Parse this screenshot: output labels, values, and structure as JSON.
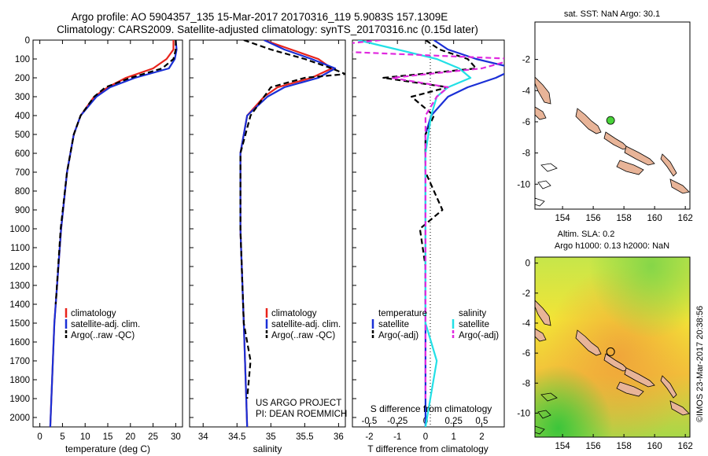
{
  "header": {
    "title_line1": "Argo profile: AO 5904357_135 15-Mar-2017 20170316_119 5.9083S 157.1309E",
    "title_line2": "Climatology: CARS2009. Satellite-adjusted climatology: synTS_20170316.nc (0.15d later)"
  },
  "colors": {
    "climatology": "#e8231b",
    "satellite": "#1a2fd6",
    "argo": "#000000",
    "satellite_salinity": "#22e0e6",
    "argo_salinity": "#e02adf",
    "land": "#e8b498",
    "float_marker": "#49d33a"
  },
  "chart_data": [
    {
      "name": "temperature-profile",
      "type": "line",
      "xlabel": "temperature (deg C)",
      "ylabel": "",
      "xlim": [
        -1.5,
        31.5
      ],
      "ylim": [
        2050,
        0
      ],
      "xticks": [
        0,
        5,
        10,
        15,
        20,
        25,
        30
      ],
      "yticks": [
        0,
        100,
        200,
        300,
        400,
        500,
        600,
        700,
        800,
        900,
        1000,
        1100,
        1200,
        1300,
        1400,
        1500,
        1600,
        1700,
        1800,
        1900,
        2000
      ],
      "legend": [
        "climatology",
        "satellite-adj. clim.",
        "Argo(..raw -QC)"
      ],
      "legend_position": "lower-right",
      "series": [
        {
          "name": "climatology",
          "depth": [
            0,
            50,
            100,
            150,
            200,
            250,
            300,
            400,
            500,
            700,
            1000,
            1500,
            2050
          ],
          "values": [
            29.5,
            29.5,
            28.0,
            25.0,
            19.0,
            15.0,
            12.0,
            9.0,
            7.5,
            6.0,
            4.7,
            3.2,
            2.3
          ]
        },
        {
          "name": "satellite-adj. clim.",
          "depth": [
            0,
            50,
            100,
            150,
            200,
            250,
            300,
            400,
            500,
            700,
            1000,
            1500,
            2050
          ],
          "values": [
            30.0,
            30.2,
            29.8,
            28.5,
            21.0,
            15.5,
            12.5,
            9.0,
            7.5,
            6.0,
            4.7,
            3.2,
            2.3
          ]
        },
        {
          "name": "Argo(..raw -QC)",
          "depth": [
            0,
            50,
            100,
            150,
            200,
            250,
            300,
            400,
            500,
            700,
            1000,
            1400
          ],
          "values": [
            30.0,
            30.0,
            29.5,
            27.0,
            20.0,
            14.5,
            12.0,
            9.0,
            7.5,
            6.0,
            4.6,
            3.5
          ]
        }
      ]
    },
    {
      "name": "salinity-profile",
      "type": "line",
      "xlabel": "salinity",
      "ylabel": "",
      "xlim": [
        33.8,
        36.1
      ],
      "ylim": [
        2050,
        0
      ],
      "xticks": [
        34,
        34.5,
        35,
        35.5,
        36
      ],
      "legend": [
        "climatology",
        "satellite-adj. clim.",
        "Argo(..raw -QC)"
      ],
      "legend_position": "lower-right",
      "annotation": [
        "US ARGO PROJECT",
        "PI: DEAN ROEMMICH"
      ],
      "series": [
        {
          "name": "climatology",
          "depth": [
            0,
            50,
            100,
            150,
            200,
            250,
            300,
            400,
            600,
            1000,
            1500,
            2050
          ],
          "values": [
            34.9,
            35.3,
            35.7,
            35.9,
            35.6,
            35.1,
            34.9,
            34.65,
            34.55,
            34.55,
            34.6,
            34.65
          ]
        },
        {
          "name": "satellite-adj. clim.",
          "depth": [
            0,
            50,
            100,
            150,
            200,
            250,
            300,
            400,
            600,
            1000,
            1500,
            2050
          ],
          "values": [
            34.9,
            35.2,
            35.6,
            35.95,
            35.7,
            35.2,
            34.95,
            34.65,
            34.55,
            34.55,
            34.6,
            34.65
          ]
        },
        {
          "name": "Argo(..raw -QC)",
          "depth": [
            0,
            50,
            100,
            150,
            180,
            200,
            250,
            300,
            400,
            600,
            1000,
            1500,
            1700,
            1900
          ],
          "values": [
            34.6,
            35.0,
            35.5,
            35.9,
            36.1,
            35.5,
            35.0,
            34.9,
            34.7,
            34.55,
            34.55,
            34.6,
            34.7,
            34.65
          ]
        }
      ]
    },
    {
      "name": "difference-profile",
      "type": "line",
      "xlabel": "T difference from climatology",
      "xlabel_top": "S difference from climatology",
      "xlim": [
        -2.6,
        2.8
      ],
      "ylim": [
        2050,
        0
      ],
      "xticks": [
        -2,
        -1,
        0,
        1,
        2
      ],
      "xticks_salinity": [
        "-0.5",
        "-0.25",
        "0",
        "0.25",
        "0.5"
      ],
      "legend_temperature_heading": "temperature",
      "legend_salinity_heading": "salinity",
      "legend": [
        "satellite",
        "Argo(-adj)",
        "satellite",
        "Argo(-adj)"
      ],
      "series": [
        {
          "name": "temperature satellite",
          "depth": [
            0,
            50,
            100,
            150,
            200,
            250,
            300,
            400,
            500,
            700,
            1000,
            1500,
            2050
          ],
          "values": [
            0.3,
            0.8,
            1.8,
            3.2,
            2.5,
            1.5,
            0.8,
            0.2,
            0.0,
            0.0,
            0.0,
            0.0,
            0.0
          ]
        },
        {
          "name": "temperature Argo(-adj)",
          "depth": [
            0,
            50,
            100,
            150,
            200,
            250,
            300,
            400,
            500,
            700,
            900,
            1000,
            1200,
            1400
          ],
          "values": [
            0.0,
            0.5,
            1.5,
            1.8,
            -1.5,
            0.8,
            -0.5,
            0.3,
            0.0,
            0.0,
            0.6,
            -0.2,
            0.0,
            0.0
          ]
        },
        {
          "name": "salinity satellite",
          "depth": [
            0,
            50,
            100,
            150,
            200,
            250,
            300,
            400,
            600,
            1000,
            1500,
            1700,
            2050
          ],
          "values": [
            -0.6,
            -0.25,
            0.1,
            0.3,
            0.4,
            0.2,
            0.1,
            0.05,
            0.0,
            0.0,
            0.0,
            0.1,
            0.0
          ]
        },
        {
          "name": "salinity Argo(-adj)",
          "depth": [
            0,
            50,
            100,
            150,
            200,
            250,
            300,
            400,
            600,
            1000,
            1500,
            1900
          ],
          "values": [
            -0.4,
            -1.2,
            0.8,
            0.5,
            -0.3,
            0.2,
            0.1,
            0.0,
            0.0,
            0.0,
            0.0,
            0.0
          ]
        }
      ]
    },
    {
      "name": "sst-map",
      "type": "heatmap",
      "title": "sat. SST: NaN Argo: 30.1",
      "xlim": [
        152.2,
        162.3
      ],
      "ylim": [
        -11.6,
        0.4
      ],
      "xticks": [
        154,
        156,
        158,
        160,
        162
      ],
      "yticks": [
        -2,
        -4,
        -6,
        -8,
        -10
      ],
      "float_position": {
        "lon": 157.13,
        "lat": -5.91
      }
    },
    {
      "name": "sla-map",
      "type": "heatmap",
      "title_line1": "Altim. SLA: 0.2",
      "title_line2": "Argo h1000: 0.13 h2000: NaN",
      "xlim": [
        152.2,
        162.3
      ],
      "ylim": [
        -11.6,
        0.4
      ],
      "xticks": [
        154,
        156,
        158,
        160,
        162
      ],
      "yticks": [
        0,
        -2,
        -4,
        -6,
        -8,
        -10
      ],
      "float_position": {
        "lon": 157.13,
        "lat": -5.91
      }
    }
  ],
  "side_label": "©IMOS 23-Mar-2017 20:38:56"
}
